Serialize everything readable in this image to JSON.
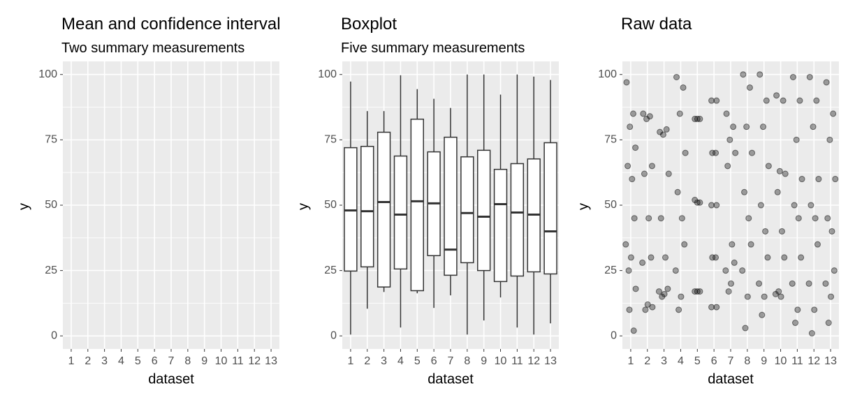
{
  "chart_data": [
    {
      "type": "errorbar",
      "title": "Mean and confidence interval",
      "subtitle": "Two summary measurements",
      "x_label": "dataset",
      "y_label": "y",
      "categories": [
        "1",
        "2",
        "3",
        "4",
        "5",
        "6",
        "7",
        "8",
        "9",
        "10",
        "11",
        "12",
        "13"
      ],
      "ylim": [
        -5,
        105
      ],
      "yticks": [
        0,
        25,
        50,
        75,
        100
      ],
      "y_minor_ticks": [
        12.5,
        37.5,
        62.5,
        87.5
      ],
      "grid": true
    },
    {
      "type": "boxplot",
      "title": "Boxplot",
      "subtitle": "Five summary measurements",
      "x_label": "dataset",
      "y_label": "y",
      "categories": [
        "1",
        "2",
        "3",
        "4",
        "5",
        "6",
        "7",
        "8",
        "9",
        "10",
        "11",
        "12",
        "13"
      ],
      "min": [
        0.5,
        10.4,
        16.8,
        3.2,
        16.3,
        10.7,
        15.5,
        0.5,
        5.9,
        14.7,
        3.2,
        0.5,
        4.8
      ],
      "q1": [
        24.8,
        26.4,
        18.7,
        25.6,
        17.3,
        30.7,
        23.2,
        28,
        25,
        20.8,
        22.9,
        24.5,
        23.7
      ],
      "median": [
        48,
        47.7,
        51.2,
        46.4,
        51.5,
        50.7,
        33,
        47,
        45.6,
        50.4,
        47.2,
        46.4,
        40
      ],
      "q3": [
        72,
        72.5,
        77.9,
        68.8,
        82.9,
        70.4,
        76,
        68.5,
        71,
        63.7,
        65.9,
        67.7,
        73.9
      ],
      "max": [
        97.3,
        86,
        86,
        99.7,
        94.4,
        90.7,
        87.2,
        100,
        100,
        92.3,
        100,
        99.2,
        97.9
      ],
      "ylim": [
        -5,
        105
      ],
      "yticks": [
        0,
        25,
        50,
        75,
        100
      ],
      "y_minor_ticks": [
        12.5,
        37.5,
        62.5,
        87.5
      ],
      "grid": true
    },
    {
      "type": "scatter",
      "title": "Raw data",
      "x_label": "dataset",
      "y_label": "y",
      "color": "#000000",
      "x": [
        0.75,
        1.15,
        0.95,
        1.28,
        0.82,
        1.08,
        1.22,
        0.7,
        1.02,
        0.88,
        1.3,
        0.92,
        1.18,
        1.75,
        2.15,
        1.95,
        2.28,
        1.82,
        2.08,
        2.22,
        1.7,
        2.02,
        1.88,
        2.3,
        2.75,
        3.15,
        2.95,
        3.28,
        2.82,
        3.08,
        3.22,
        2.7,
        3.02,
        2.88,
        3.75,
        4.15,
        3.95,
        4.28,
        3.82,
        4.08,
        4.22,
        3.7,
        4.02,
        3.88,
        4.85,
        5.15,
        5.0,
        4.85,
        5.15,
        5.0,
        4.85,
        5.15,
        5.0,
        5.85,
        6.15,
        5.9,
        6.1,
        5.85,
        6.15,
        5.9,
        6.1,
        5.85,
        6.15,
        6.75,
        7.15,
        6.95,
        7.28,
        6.82,
        7.08,
        7.22,
        6.7,
        7.02,
        6.88,
        7.75,
        8.15,
        7.95,
        8.28,
        7.82,
        8.08,
        8.22,
        7.7,
        8.02,
        7.88,
        8.75,
        9.15,
        8.95,
        9.28,
        8.82,
        9.08,
        9.22,
        8.7,
        9.02,
        8.88,
        9.75,
        10.15,
        9.95,
        10.28,
        9.82,
        10.08,
        10.22,
        9.7,
        10.02,
        9.88,
        10.75,
        11.15,
        10.95,
        11.28,
        10.82,
        11.08,
        11.22,
        10.7,
        11.02,
        10.88,
        11.75,
        12.15,
        11.95,
        12.28,
        11.82,
        12.08,
        12.22,
        11.7,
        12.02,
        11.88,
        12.75,
        13.15,
        12.95,
        13.28,
        12.82,
        13.08,
        13.22,
        12.7,
        13.02,
        12.88
      ],
      "values": [
        97,
        85,
        80,
        72,
        65,
        60,
        45,
        35,
        30,
        25,
        18,
        10,
        2,
        85,
        84,
        83,
        65,
        62,
        45,
        30,
        28,
        12,
        10,
        11,
        78,
        79,
        77,
        62,
        45,
        30,
        18,
        17,
        16,
        15,
        99,
        95,
        85,
        70,
        55,
        45,
        35,
        25,
        15,
        10,
        83,
        83,
        83,
        52,
        51,
        51,
        17,
        17,
        17,
        90,
        90,
        70,
        70,
        50,
        50,
        30,
        30,
        11,
        11,
        85,
        80,
        75,
        70,
        65,
        35,
        28,
        25,
        20,
        17,
        100,
        95,
        80,
        70,
        55,
        45,
        35,
        25,
        15,
        3,
        100,
        90,
        80,
        65,
        50,
        40,
        30,
        20,
        15,
        8,
        92,
        90,
        63,
        62,
        55,
        40,
        30,
        16,
        15,
        17,
        99,
        90,
        75,
        60,
        50,
        45,
        30,
        20,
        10,
        5,
        99,
        90,
        80,
        60,
        50,
        45,
        35,
        20,
        10,
        1,
        97,
        85,
        75,
        60,
        45,
        40,
        25,
        20,
        15,
        5
      ],
      "xlim": [
        0.5,
        13.5
      ],
      "xticks": [
        1,
        2,
        3,
        4,
        5,
        6,
        7,
        8,
        9,
        10,
        11,
        12,
        13
      ],
      "ylim": [
        -5,
        105
      ],
      "yticks": [
        0,
        25,
        50,
        75,
        100
      ],
      "y_minor_ticks": [
        12.5,
        37.5,
        62.5,
        87.5
      ],
      "grid": true
    }
  ]
}
